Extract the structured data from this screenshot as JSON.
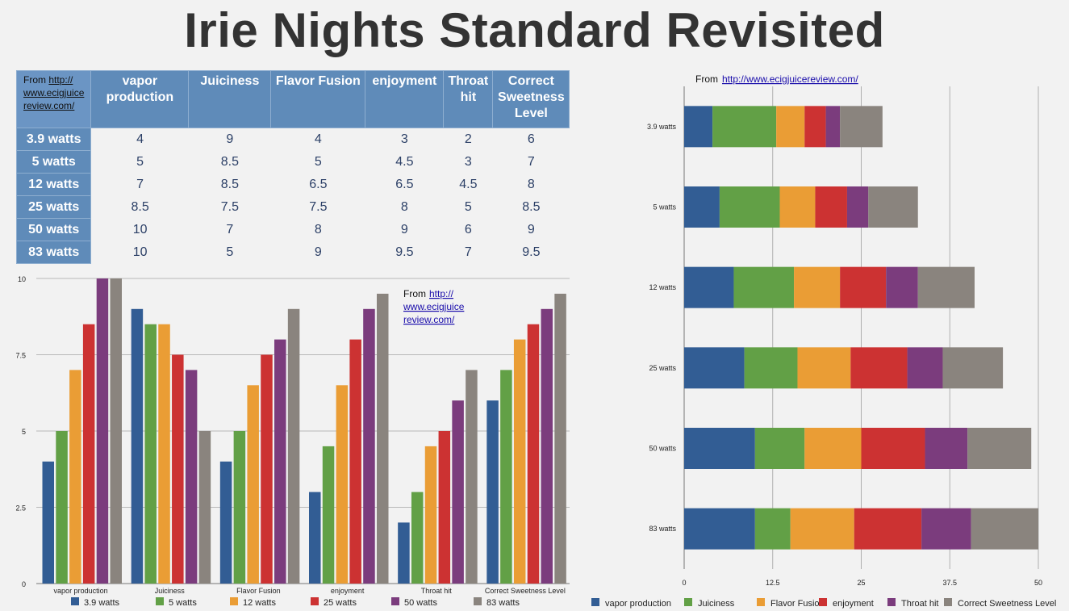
{
  "title": "Irie Nights Standard Revisited",
  "source": {
    "prefix": "From ",
    "url": "http://www.ecigjuicereview.com/",
    "url_lines": [
      "http://",
      "www.ecigjuice",
      "review.com/"
    ]
  },
  "colors": {
    "vapor production": "#325d94",
    "Juiciness": "#62a046",
    "Flavor Fusion": "#ea9d35",
    "enjoyment": "#cc3232",
    "Throat hit": "#7b3c7d",
    "Correct Sweetness Level": "#8a847e",
    "3.9 watts": "#325d94",
    "5 watts": "#62a046",
    "12 watts": "#ea9d35",
    "25 watts": "#cc3232",
    "50 watts": "#7b3c7d",
    "83 watts": "#8a847e"
  },
  "table": {
    "columns": [
      "vapor production",
      "Juiciness",
      "Flavor Fusion",
      "enjoyment",
      "Throat hit",
      "Correct Sweetness Level"
    ],
    "rows": [
      {
        "label": "3.9 watts",
        "values": [
          "4",
          "9",
          "4",
          "3",
          "2",
          "6"
        ]
      },
      {
        "label": "5 watts",
        "values": [
          "5",
          "8.5",
          "5",
          "4.5",
          "3",
          "7"
        ]
      },
      {
        "label": "12 watts",
        "values": [
          "7",
          "8.5",
          "6.5",
          "6.5",
          "4.5",
          "8"
        ]
      },
      {
        "label": "25 watts",
        "values": [
          "8.5",
          "7.5",
          "7.5",
          "8",
          "5",
          "8.5"
        ]
      },
      {
        "label": "50 watts",
        "values": [
          "10",
          "7",
          "8",
          "9",
          "6",
          "9"
        ]
      },
      {
        "label": "83 watts",
        "values": [
          "10",
          "5",
          "9",
          "9.5",
          "7",
          "9.5"
        ]
      }
    ]
  },
  "chart_data": [
    {
      "type": "bar",
      "categories": [
        "vapor production",
        "Juiciness",
        "Flavor Fusion",
        "enjoyment",
        "Throat hit",
        "Correct Sweetness Level"
      ],
      "series": [
        {
          "name": "3.9 watts",
          "values": [
            4,
            9,
            4,
            3,
            2,
            6
          ]
        },
        {
          "name": "5 watts",
          "values": [
            5,
            8.5,
            5,
            4.5,
            3,
            7
          ]
        },
        {
          "name": "12 watts",
          "values": [
            7,
            8.5,
            6.5,
            6.5,
            4.5,
            8
          ]
        },
        {
          "name": "25 watts",
          "values": [
            8.5,
            7.5,
            7.5,
            8,
            5,
            8.5
          ]
        },
        {
          "name": "50 watts",
          "values": [
            10,
            7,
            8,
            9,
            6,
            9
          ]
        },
        {
          "name": "83 watts",
          "values": [
            10,
            5,
            9,
            9.5,
            7,
            9.5
          ]
        }
      ],
      "ylim": [
        0,
        10
      ],
      "yticks": [
        "0",
        "2.5",
        "5",
        "7.5",
        "10"
      ],
      "grid": true,
      "legend": "bottom"
    },
    {
      "type": "bar",
      "orientation": "horizontal",
      "stacked": true,
      "categories": [
        "3.9 watts",
        "5 watts",
        "12 watts",
        "25 watts",
        "50 watts",
        "83 watts"
      ],
      "series": [
        {
          "name": "vapor production",
          "values": [
            4,
            5,
            7,
            8.5,
            10,
            10
          ]
        },
        {
          "name": "Juiciness",
          "values": [
            9,
            8.5,
            8.5,
            7.5,
            7,
            5
          ]
        },
        {
          "name": "Flavor Fusion",
          "values": [
            4,
            5,
            6.5,
            7.5,
            8,
            9
          ]
        },
        {
          "name": "enjoyment",
          "values": [
            3,
            4.5,
            6.5,
            8,
            9,
            9.5
          ]
        },
        {
          "name": "Throat hit",
          "values": [
            2,
            3,
            4.5,
            5,
            6,
            7
          ]
        },
        {
          "name": "Correct Sweetness Level",
          "values": [
            6,
            7,
            8,
            8.5,
            9,
            9.5
          ]
        }
      ],
      "xlim": [
        0,
        50
      ],
      "xticks": [
        "0",
        "12.5",
        "25",
        "37.5",
        "50"
      ],
      "grid": true,
      "legend": "bottom"
    }
  ]
}
